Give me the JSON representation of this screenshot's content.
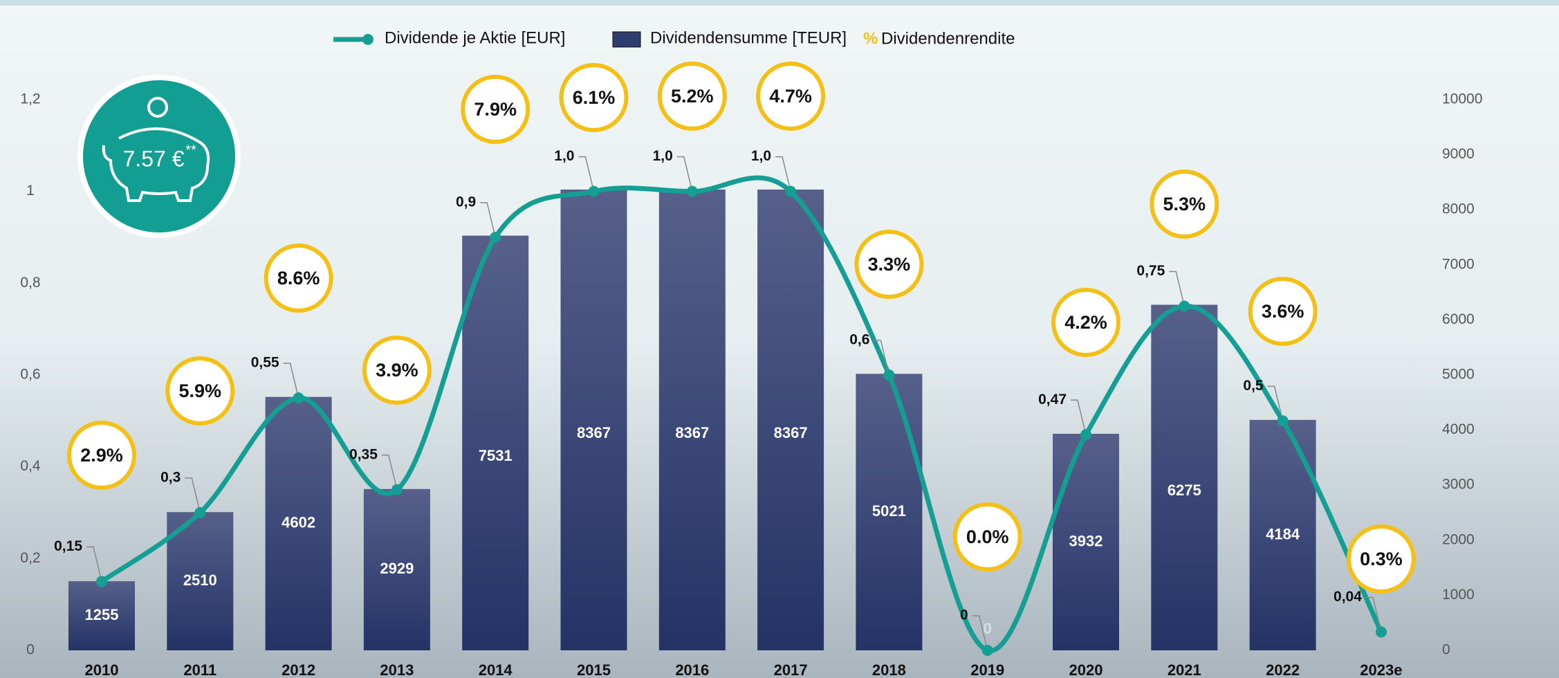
{
  "chart_data": {
    "type": "bar",
    "categories": [
      "2010",
      "2011",
      "2012",
      "2013",
      "2014",
      "2015",
      "2016",
      "2017",
      "2018",
      "2019",
      "2020",
      "2021",
      "2022",
      "2023e"
    ],
    "series": [
      {
        "name": "Dividendensumme [TEUR]",
        "type": "bar",
        "axis": "y2",
        "color": "#2f3c6e",
        "values": [
          1255,
          2510,
          4602,
          2929,
          7531,
          8367,
          8367,
          8367,
          5021,
          0,
          3932,
          6275,
          4184,
          null
        ]
      },
      {
        "name": "Dividende je Aktie [EUR]",
        "type": "line",
        "color": "#159e94",
        "values": [
          0.15,
          0.3,
          0.55,
          0.35,
          0.9,
          1.0,
          1.0,
          1.0,
          0.6,
          0,
          0.47,
          0.75,
          0.5,
          0.04
        ],
        "value_labels": [
          "0,15",
          "0,3",
          "0,55",
          "0,35",
          "0,9",
          "1,0",
          "1,0",
          "1,0",
          "0,6",
          "0",
          "0,47",
          "0,75",
          "0,5",
          "0,04"
        ]
      },
      {
        "name": "Dividendenrendite",
        "type": "circle-label",
        "color": "#f5c016",
        "symbol": "%",
        "values": [
          2.9,
          5.9,
          8.6,
          3.9,
          7.9,
          6.1,
          5.2,
          4.7,
          3.3,
          0.0,
          4.2,
          5.3,
          3.6,
          0.3
        ],
        "value_labels": [
          "2.9%",
          "5.9%",
          "8.6%",
          "3.9%",
          "7.9%",
          "6.1%",
          "5.2%",
          "4.7%",
          "3.3%",
          "0.0%",
          "4.2%",
          "5.3%",
          "3.6%",
          "0.3%"
        ]
      }
    ],
    "ylim": [
      0,
      1.2
    ],
    "yticks": [
      0,
      {
        "value": 0.2,
        "label": "0,2"
      },
      {
        "value": 0.4,
        "label": "0,4"
      },
      {
        "value": 0.6,
        "label": "0,6"
      },
      {
        "value": 0.8,
        "label": "0,8"
      },
      1,
      {
        "value": 1.2,
        "label": "1,2"
      }
    ],
    "y2lim": [
      0,
      10000
    ],
    "y2ticks": [
      0,
      1000,
      2000,
      3000,
      4000,
      5000,
      6000,
      7000,
      8000,
      9000,
      10000
    ],
    "badge": {
      "text": "7.57 €",
      "note": "**"
    }
  }
}
